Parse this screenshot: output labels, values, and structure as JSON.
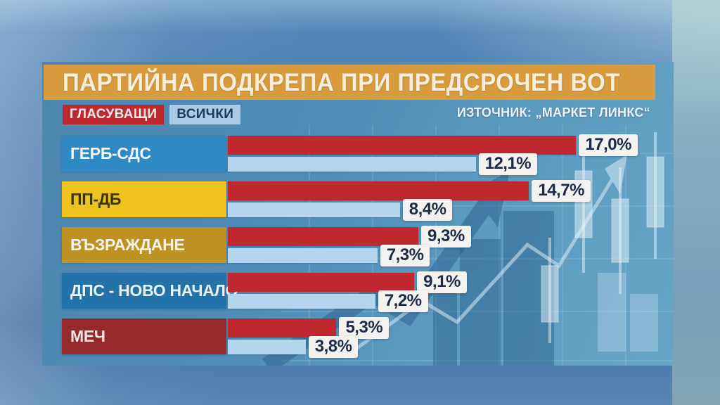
{
  "title": "ПАРТИЙНА ПОДКРЕПА ПРИ ПРЕДСРОЧЕН ВОТ",
  "source": "ИЗТОЧНИК: „МАРКЕТ ЛИНКС“",
  "legend": [
    {
      "label": "ГЛАСУВАЩИ",
      "color": "#c02830",
      "text_color": "#f4ece8"
    },
    {
      "label": "ВСИЧКИ",
      "color": "#a9cbe5",
      "text_color": "#1a3a5e"
    }
  ],
  "colors": {
    "title_bar": "#d89c3e",
    "panel": "#4f8ab2",
    "voters_bar": "#c02830",
    "all_bar": "#b3d5ee",
    "value_box_bg": "#f3f2ee",
    "value_box_text": "#1c2b49"
  },
  "chart_data": {
    "type": "bar",
    "orientation": "horizontal",
    "title": "ПАРТИЙНА ПОДКРЕПА ПРИ ПРЕДСРОЧЕН ВОТ",
    "source": "ИЗТОЧНИК: „МАРКЕТ ЛИНКС“",
    "legend_position": "top-left",
    "grid": false,
    "value_suffix": "%",
    "decimal_separator": ",",
    "bar_scale_pct_per_point": 4.67,
    "categories": [
      "ГЕРБ-СДС",
      "ПП-ДБ",
      "ВЪЗРАЖДАНЕ",
      "ДПС - НОВО НАЧАЛО",
      "МЕЧ"
    ],
    "category_colors": [
      "#2f89c5",
      "#efc31e",
      "#bd9222",
      "#2372a8",
      "#96292b"
    ],
    "category_text_colors": [
      "#f2f7fb",
      "#3c340f",
      "#f6f3ea",
      "#eaf2f8",
      "#f2e6e4"
    ],
    "series": [
      {
        "name": "ГЛАСУВАЩИ",
        "color": "#c02830",
        "values": [
          17.0,
          14.7,
          9.3,
          9.1,
          5.3
        ],
        "labels": [
          "17,0%",
          "14,7%",
          "9,3%",
          "9,1%",
          "5,3%"
        ]
      },
      {
        "name": "ВСИЧКИ",
        "color": "#b3d5ee",
        "values": [
          12.1,
          8.4,
          7.3,
          7.2,
          3.8
        ],
        "labels": [
          "12,1%",
          "8,4%",
          "7,3%",
          "7,2%",
          "3,8%"
        ]
      }
    ]
  }
}
